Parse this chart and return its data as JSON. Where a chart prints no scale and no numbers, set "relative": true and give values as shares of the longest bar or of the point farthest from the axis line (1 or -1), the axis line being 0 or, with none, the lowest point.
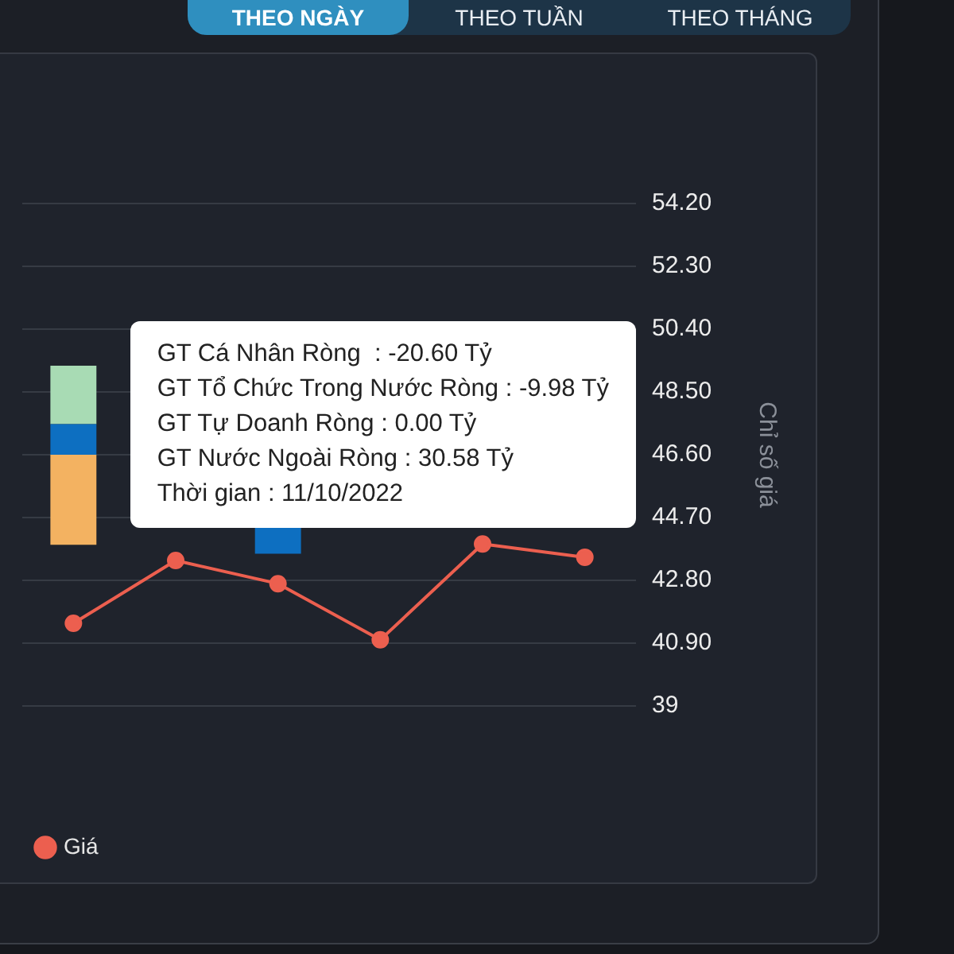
{
  "chart_data": [
    {
      "type": "line",
      "categories": [
        null,
        null,
        null,
        null,
        null,
        null
      ],
      "series": [
        {
          "name": "Giá",
          "color": "#ec5f4f",
          "values": [
            41.5,
            43.4,
            42.7,
            41.0,
            43.9,
            43.5
          ]
        }
      ],
      "ylim": [
        39,
        54.2
      ],
      "yticks": [
        39,
        {
          "value": 40.9,
          "label": "40.90"
        },
        {
          "value": 42.8,
          "label": "42.80"
        },
        {
          "value": 44.7,
          "label": "44.70"
        },
        {
          "value": 46.6,
          "label": "46.60"
        },
        {
          "value": 48.5,
          "label": "48.50"
        },
        {
          "value": 50.4,
          "label": "50.40"
        },
        {
          "value": 52.3,
          "label": "52.30"
        },
        {
          "value": 54.2,
          "label": "54.20"
        }
      ],
      "ylabel": "Chỉ số giá",
      "grid": "y",
      "legend": "bottom left",
      "marker": "circle",
      "annotations": [
        "GT Cá Nhân Ròng  : -20.60 Tỷ",
        "GT Tổ Chức Trong Nước Ròng : -9.98 Tỷ",
        "GT Tự Doanh Ròng : 0.00 Tỷ",
        "GT Nước Ngoài Ròng : 30.58 Tỷ",
        "Thời gian : 11/10/2022"
      ]
    },
    {
      "type": "bar",
      "categories": [
        null,
        null,
        null,
        null,
        null,
        null
      ],
      "series": [
        {
          "color": "#f3b261",
          "values": [
            -0.91,
            null,
            null,
            null,
            null,
            null
          ]
        },
        {
          "color": "#0d6fc1",
          "values": [
            0.31,
            null,
            -1,
            null,
            null,
            null
          ]
        },
        {
          "color": "#a8dbb4",
          "values": [
            0.59,
            null,
            null,
            null,
            null,
            null
          ]
        }
      ],
      "stacked": true,
      "relative": true,
      "annotations": [
        "THEO NGÀY",
        "THEO TUẦN",
        "THEO THÁNG"
      ]
    }
  ]
}
